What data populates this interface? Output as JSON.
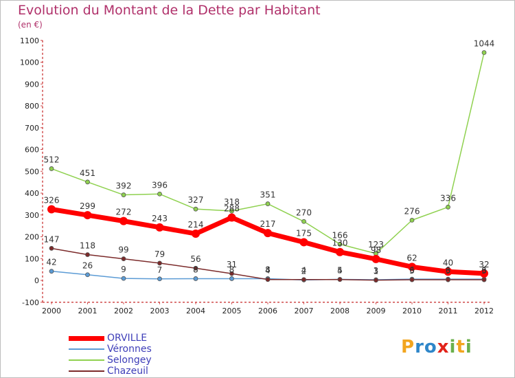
{
  "chart_data": {
    "type": "line",
    "title": "Evolution du Montant de la Dette par Habitant",
    "subtitle": "(en €)",
    "x": [
      "2000",
      "2001",
      "2002",
      "2003",
      "2004",
      "2005",
      "2006",
      "2007",
      "2008",
      "2009",
      "2010",
      "2011",
      "2012"
    ],
    "ylim": [
      -100,
      1100
    ],
    "yticks": [
      -100,
      0,
      100,
      200,
      300,
      400,
      500,
      600,
      700,
      800,
      900,
      1000,
      1100
    ],
    "grid": false,
    "legend_position": "bottom-left",
    "series": [
      {
        "name": "ORVILLE",
        "color": "#ff0000",
        "values": [
          326,
          299,
          272,
          243,
          214,
          288,
          217,
          175,
          130,
          98,
          62,
          40,
          32
        ]
      },
      {
        "name": "Véronnes",
        "color": "#5b9bd5",
        "values": [
          42,
          26,
          9,
          7,
          8,
          8,
          8,
          2,
          5,
          3,
          6,
          6,
          6
        ]
      },
      {
        "name": "Selongey",
        "color": "#8fd14f",
        "values": [
          512,
          451,
          392,
          396,
          327,
          318,
          351,
          270,
          166,
          123,
          276,
          336,
          1044
        ]
      },
      {
        "name": "Chazeuil",
        "color": "#7b2a2a",
        "values": [
          147,
          118,
          99,
          79,
          56,
          31,
          4,
          4,
          4,
          1,
          3,
          3,
          3
        ]
      }
    ]
  },
  "logo": {
    "letters": [
      "P",
      "r",
      "o",
      "x",
      "i",
      "t",
      "i"
    ],
    "colors": [
      "#f2a51f",
      "#2e86c9",
      "#2e86c9",
      "#e2231a",
      "#6ab04c",
      "#f2a51f",
      "#6ab04c"
    ]
  }
}
